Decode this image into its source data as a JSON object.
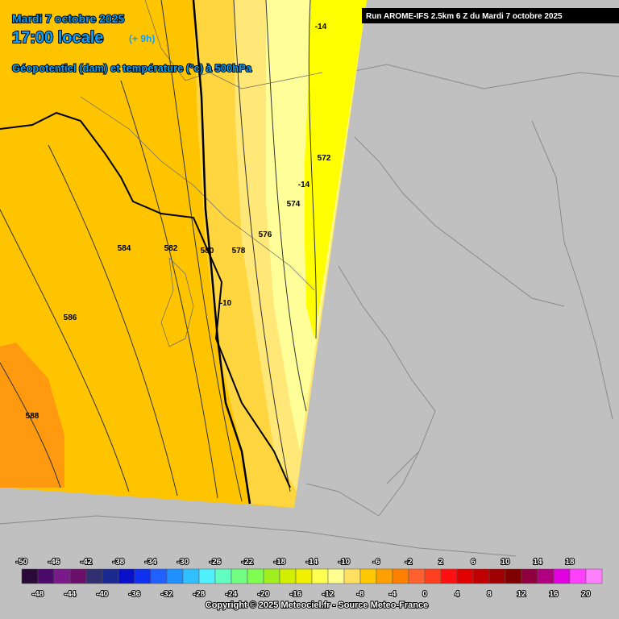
{
  "header": {
    "date": "Mardi 7 octobre 2025",
    "time": "17:00 locale",
    "offset": "(+ 9h)",
    "subtitle": "Géopotentiel (dam) et température (°c) à 500hPa",
    "run": "Run AROME-IFS 2.5km 6 Z du Mardi 7 octobre 2025"
  },
  "contour_labels": [
    "-14",
    "572",
    "-14",
    "574",
    "576",
    "578",
    "580",
    "582",
    "584",
    "586",
    "588",
    "-10"
  ],
  "scale": {
    "top": [
      -50,
      -46,
      -42,
      -38,
      -34,
      -30,
      -26,
      -22,
      -18,
      -14,
      -10,
      -6,
      -2,
      2,
      6,
      10,
      14,
      18
    ],
    "bottom": [
      -48,
      -44,
      -40,
      -36,
      -32,
      -28,
      -24,
      -20,
      -16,
      -12,
      -8,
      -4,
      0,
      4,
      8,
      12,
      16,
      20
    ],
    "colors": [
      "#2a0a3a",
      "#4b0a6a",
      "#7a1a8a",
      "#6a106a",
      "#303070",
      "#1a2a90",
      "#0a10c8",
      "#1030f0",
      "#2060ff",
      "#2090ff",
      "#30c0ff",
      "#50f0ff",
      "#60ffc0",
      "#70ff80",
      "#80ff50",
      "#a0f020",
      "#d0f000",
      "#f0f000",
      "#ffff50",
      "#ffff90",
      "#ffe060",
      "#ffc800",
      "#ffa000",
      "#ff8000",
      "#ff6030",
      "#ff4020",
      "#ff1010",
      "#e00000",
      "#c00000",
      "#a00000",
      "#800000",
      "#900040",
      "#b00080",
      "#e000e0",
      "#ff40ff",
      "#ff80ff"
    ],
    "copyright": "Copyright © 2025 Meteociel.fr - Source Meteo-France"
  }
}
